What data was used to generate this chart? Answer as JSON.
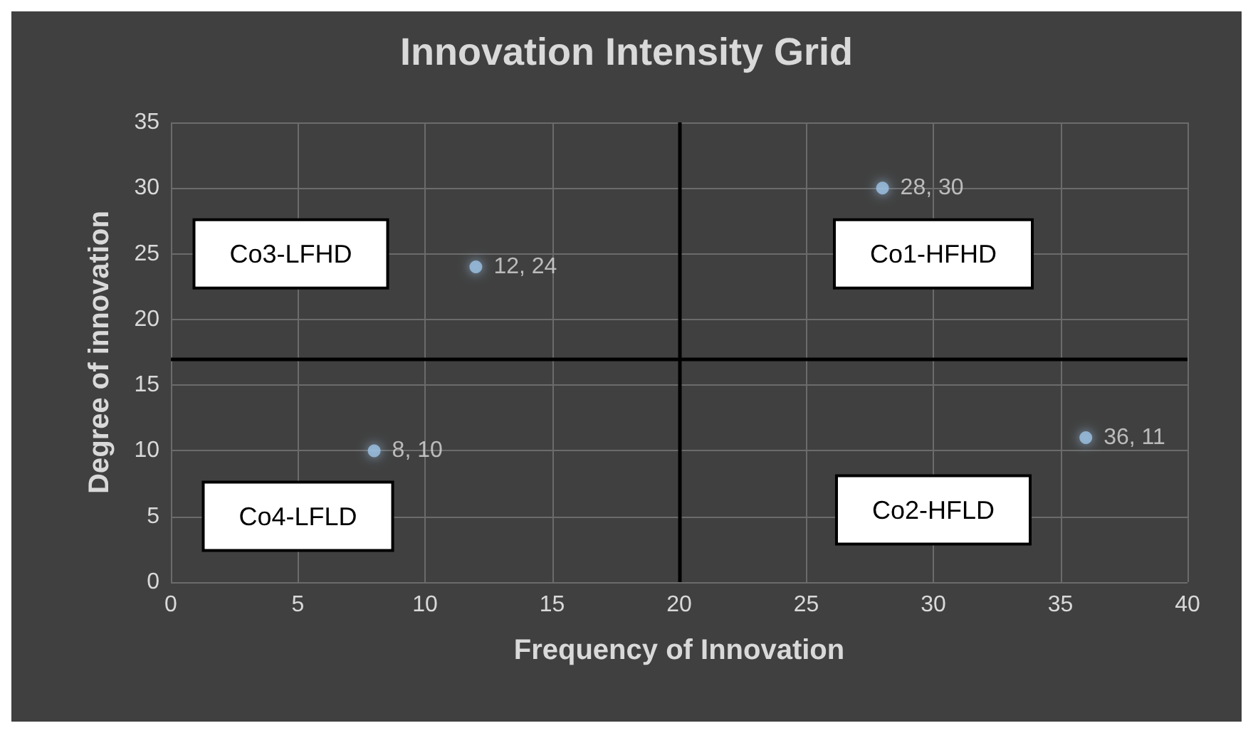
{
  "chart_data": {
    "type": "scatter",
    "title": "Innovation Intensity Grid",
    "xlabel": "Frequency of Innovation",
    "ylabel": "Degree of innovation",
    "x": [
      8,
      12,
      28,
      36
    ],
    "series": [
      {
        "color": "#9dc3e6",
        "values": [
          10,
          24,
          30,
          11
        ],
        "value_labels": [
          "8, 10",
          "12, 24",
          "28, 30",
          "36, 11"
        ]
      }
    ],
    "xlim": [
      0,
      40
    ],
    "xticks": [
      0,
      5,
      10,
      15,
      20,
      25,
      30,
      35,
      40
    ],
    "ylim": [
      0,
      35
    ],
    "yticks": [
      0,
      5,
      10,
      15,
      20,
      25,
      30,
      35
    ],
    "grid": true,
    "marker": "circle",
    "ref_lines": [
      {
        "axis": "x",
        "value": 20,
        "color": "#000000"
      },
      {
        "axis": "y",
        "value": 17,
        "color": "#000000"
      }
    ],
    "annotations": [
      "Co3-LFHD",
      "Co1-HFHD",
      "Co4-LFLD",
      "Co2-HFLD"
    ]
  }
}
